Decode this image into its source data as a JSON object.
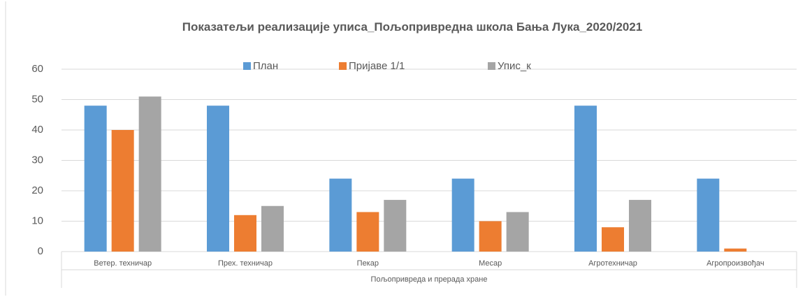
{
  "chart_data": {
    "type": "bar",
    "title": "Показатељи реализације уписа_Пољопривредна школа Бања Лука_2020/2021",
    "xlabel": "Пољопривреда и прерада хране",
    "categories": [
      "Ветер. техничар",
      "Прех. техничар",
      "Пекар",
      "Месар",
      "Агротехничар",
      "Агропроизвођач"
    ],
    "series": [
      {
        "name": "План",
        "color": "#5b9bd5",
        "values": [
          48,
          48,
          24,
          24,
          48,
          24
        ]
      },
      {
        "name": "Пријаве 1/1",
        "color": "#ed7d31",
        "values": [
          40,
          12,
          13,
          10,
          8,
          1
        ]
      },
      {
        "name": "Упис_к",
        "color": "#a5a5a5",
        "values": [
          51,
          15,
          17,
          13,
          17,
          0
        ]
      }
    ],
    "ylim": [
      0,
      60
    ],
    "yticks": [
      0,
      10,
      20,
      30,
      40,
      50,
      60
    ],
    "grid": true,
    "legend": "top"
  }
}
